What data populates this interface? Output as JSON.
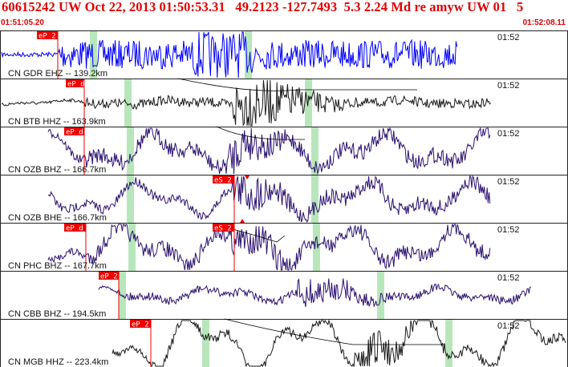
{
  "header": {
    "title": "60615242 UW Oct 22, 2013 01:50:53.31   49.2123 -127.7493  5.3 2.24 Md re amyw UW 01   5",
    "start_time": "01:51:05.20",
    "end_time": "01:52:08.11"
  },
  "colors": {
    "title": "#e00000",
    "pick": "#ee0000",
    "time_marker": "#b8e6bb",
    "trace_default": "#1a1a1a",
    "trace_blue": "#0000ff",
    "trace_purple": "#2a1070"
  },
  "traces": [
    {
      "label": "CN GDR EHZ -- 139.2km",
      "minute_label": "01:52",
      "picks": [
        "eP 2"
      ],
      "color": "blue"
    },
    {
      "label": "CN BTB HHZ -- 163.9km",
      "minute_label": "01:52",
      "picks": [
        "eP d"
      ],
      "color": "black"
    },
    {
      "label": "CN OZB BHZ -- 166.7km",
      "minute_label": "01:52",
      "picks": [
        "eP d"
      ],
      "color": "purple"
    },
    {
      "label": "CN OZB BHE -- 166.7km",
      "minute_label": "01:52",
      "picks": [
        "eS 2"
      ],
      "color": "purple"
    },
    {
      "label": "CN PHC BHZ -- 167.7km",
      "minute_label": "01:52",
      "picks": [
        "eP d",
        "eS 2"
      ],
      "color": "purple"
    },
    {
      "label": "CN CBB BHZ -- 194.5km",
      "minute_label": "01:52",
      "picks": [
        "eP 2"
      ],
      "color": "purple"
    },
    {
      "label": "CN MGB HHZ -- 223.4km",
      "minute_label": "01:52",
      "picks": [
        "eP 2"
      ],
      "color": "black"
    }
  ]
}
